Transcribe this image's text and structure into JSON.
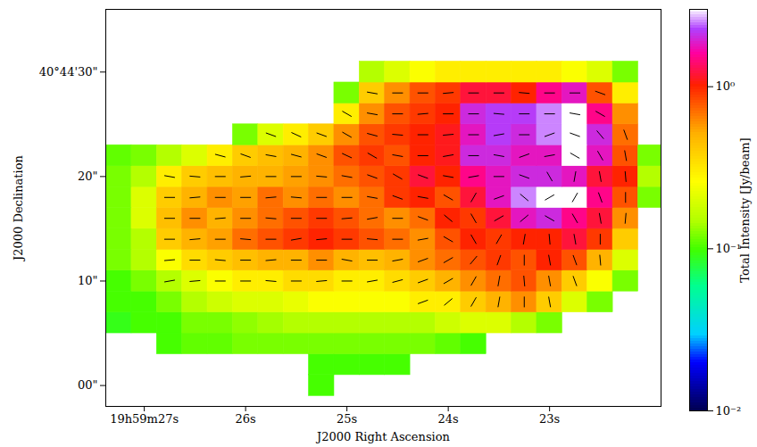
{
  "chart_data": {
    "type": "heatmap",
    "xlabel": "J2000 Right Ascension",
    "ylabel": "J2000 Declination",
    "xlim": [
      27.38,
      21.9
    ],
    "xticks": [
      {
        "value": 27,
        "label": "19h59m27s"
      },
      {
        "value": 26,
        "label": "26s"
      },
      {
        "value": 25,
        "label": "25s"
      },
      {
        "value": 24,
        "label": "24s"
      },
      {
        "value": 23,
        "label": "23s"
      }
    ],
    "ylim": [
      -2,
      36
    ],
    "yticks": [
      {
        "value": 0,
        "label": "00\""
      },
      {
        "value": 10,
        "label": "10\""
      },
      {
        "value": 20,
        "label": "20\""
      },
      {
        "value": 30,
        "label": "40°44'30\""
      }
    ],
    "ra": [
      27.25,
      27.0,
      26.75,
      26.5,
      26.25,
      26.0,
      25.75,
      25.5,
      25.25,
      25.0,
      24.75,
      24.5,
      24.25,
      24.0,
      23.75,
      23.5,
      23.25,
      23.0,
      22.75,
      22.5,
      22.25,
      22.0
    ],
    "dec": [
      0,
      2,
      4,
      6,
      8,
      10,
      12,
      14,
      16,
      18,
      20,
      22,
      24,
      26,
      28,
      30,
      32,
      34
    ],
    "intensity": [
      [
        null,
        null,
        null,
        null,
        null,
        null,
        null,
        null,
        0.1,
        null,
        null,
        null,
        null,
        null,
        null,
        null,
        null,
        null,
        null,
        null,
        null,
        null
      ],
      [
        null,
        null,
        null,
        null,
        null,
        null,
        null,
        null,
        0.1,
        0.1,
        0.1,
        0.1,
        null,
        null,
        null,
        null,
        null,
        null,
        null,
        null,
        null,
        null
      ],
      [
        null,
        null,
        0.1,
        0.11,
        0.11,
        0.12,
        0.12,
        0.12,
        0.12,
        0.12,
        0.12,
        0.12,
        0.12,
        0.11,
        0.1,
        null,
        null,
        null,
        null,
        null,
        null,
        null
      ],
      [
        0.09,
        0.1,
        0.1,
        0.12,
        0.12,
        0.13,
        0.14,
        0.15,
        0.15,
        0.15,
        0.15,
        0.15,
        0.15,
        0.18,
        0.2,
        0.2,
        0.15,
        0.12,
        null,
        null,
        null,
        null
      ],
      [
        0.1,
        0.1,
        0.12,
        0.15,
        0.18,
        0.2,
        0.2,
        0.22,
        0.25,
        0.25,
        0.25,
        0.25,
        0.3,
        0.3,
        0.4,
        0.5,
        0.6,
        0.4,
        0.2,
        0.12,
        null,
        null
      ],
      [
        0.1,
        0.12,
        0.15,
        0.2,
        0.25,
        0.3,
        0.3,
        0.35,
        0.35,
        0.3,
        0.3,
        0.35,
        0.4,
        0.5,
        0.6,
        0.7,
        0.8,
        0.6,
        0.4,
        0.25,
        0.12,
        null
      ],
      [
        0.12,
        0.15,
        0.25,
        0.35,
        0.4,
        0.45,
        0.5,
        0.5,
        0.6,
        0.5,
        0.45,
        0.5,
        0.6,
        0.7,
        0.8,
        0.9,
        0.8,
        1.0,
        0.8,
        0.5,
        0.2,
        null
      ],
      [
        0.12,
        0.15,
        0.4,
        0.5,
        0.55,
        0.7,
        0.8,
        0.9,
        1.0,
        0.9,
        0.8,
        0.7,
        0.6,
        0.8,
        1.0,
        0.9,
        1.0,
        1.0,
        1.2,
        0.9,
        0.4,
        null
      ],
      [
        0.12,
        0.2,
        0.45,
        0.6,
        0.5,
        0.6,
        0.7,
        0.8,
        0.9,
        0.8,
        0.7,
        0.6,
        0.7,
        1.0,
        0.9,
        1.2,
        1.8,
        2.0,
        1.5,
        1.2,
        0.6,
        null
      ],
      [
        0.12,
        0.2,
        0.4,
        0.5,
        0.6,
        0.55,
        0.7,
        0.6,
        0.7,
        0.6,
        0.7,
        0.9,
        1.0,
        0.8,
        1.2,
        1.8,
        2.5,
        4.0,
        3.0,
        1.5,
        0.8,
        0.12
      ],
      [
        0.12,
        0.15,
        0.3,
        0.4,
        0.45,
        0.5,
        0.5,
        0.55,
        0.6,
        0.7,
        0.8,
        0.9,
        1.2,
        1.0,
        1.5,
        1.8,
        2.0,
        2.0,
        1.8,
        1.2,
        1.0,
        0.15
      ],
      [
        0.11,
        0.12,
        0.15,
        0.2,
        0.3,
        0.4,
        0.45,
        0.5,
        0.6,
        0.8,
        0.9,
        0.8,
        1.0,
        1.1,
        2.0,
        2.0,
        1.8,
        1.8,
        3.0,
        1.8,
        0.8,
        0.12
      ],
      [
        null,
        null,
        null,
        null,
        null,
        0.12,
        0.2,
        0.3,
        0.4,
        0.6,
        0.8,
        0.9,
        1.0,
        1.1,
        1.8,
        2.2,
        2.0,
        2.5,
        4.0,
        2.0,
        0.7,
        null
      ],
      [
        null,
        null,
        null,
        null,
        null,
        null,
        null,
        null,
        null,
        0.3,
        0.6,
        0.8,
        0.9,
        1.0,
        2.0,
        2.2,
        2.2,
        2.5,
        3.5,
        1.5,
        0.6,
        null
      ],
      [
        null,
        null,
        null,
        null,
        null,
        null,
        null,
        null,
        null,
        0.12,
        0.4,
        0.6,
        0.8,
        0.9,
        1.2,
        1.2,
        1.0,
        1.5,
        1.8,
        0.8,
        0.3,
        null
      ],
      [
        null,
        null,
        null,
        null,
        null,
        null,
        null,
        null,
        null,
        null,
        0.15,
        0.2,
        0.25,
        0.3,
        0.3,
        0.3,
        0.3,
        0.3,
        0.25,
        0.2,
        0.12,
        null
      ],
      [
        null,
        null,
        null,
        null,
        null,
        null,
        null,
        null,
        null,
        null,
        null,
        null,
        null,
        null,
        null,
        null,
        null,
        null,
        null,
        null,
        null,
        null
      ],
      [
        null,
        null,
        null,
        null,
        null,
        null,
        null,
        null,
        null,
        null,
        null,
        null,
        null,
        null,
        null,
        null,
        null,
        null,
        null,
        null,
        null,
        null
      ]
    ],
    "vector_angle": [
      [
        null,
        null,
        null,
        null,
        null,
        null,
        null,
        null,
        null,
        null,
        null,
        null,
        null,
        null,
        null,
        null,
        null,
        null,
        null,
        null,
        null,
        null
      ],
      [
        null,
        null,
        null,
        null,
        null,
        null,
        null,
        null,
        null,
        null,
        null,
        null,
        null,
        null,
        null,
        null,
        null,
        null,
        null,
        null,
        null,
        null
      ],
      [
        null,
        null,
        null,
        null,
        null,
        null,
        null,
        null,
        null,
        null,
        null,
        null,
        null,
        null,
        null,
        null,
        null,
        null,
        null,
        null,
        null,
        null
      ],
      [
        null,
        null,
        null,
        null,
        null,
        null,
        null,
        null,
        null,
        null,
        null,
        null,
        null,
        null,
        null,
        null,
        null,
        null,
        null,
        null,
        null,
        null
      ],
      [
        null,
        null,
        null,
        null,
        null,
        null,
        null,
        null,
        null,
        null,
        null,
        null,
        20,
        40,
        60,
        80,
        90,
        100,
        null,
        null,
        null,
        null
      ],
      [
        null,
        null,
        10,
        5,
        0,
        0,
        -5,
        0,
        5,
        0,
        10,
        15,
        20,
        30,
        60,
        80,
        95,
        100,
        110,
        null,
        null,
        null
      ],
      [
        null,
        null,
        5,
        0,
        -5,
        0,
        5,
        0,
        0,
        -10,
        0,
        10,
        20,
        30,
        50,
        70,
        90,
        100,
        110,
        95,
        null,
        null
      ],
      [
        null,
        null,
        0,
        5,
        0,
        -5,
        0,
        10,
        5,
        0,
        -5,
        0,
        10,
        150,
        120,
        60,
        80,
        95,
        100,
        90,
        null,
        null
      ],
      [
        null,
        null,
        0,
        0,
        5,
        0,
        -5,
        0,
        0,
        5,
        10,
        0,
        160,
        140,
        120,
        30,
        40,
        150,
        120,
        100,
        85,
        null
      ],
      [
        null,
        null,
        0,
        5,
        0,
        0,
        5,
        -5,
        0,
        0,
        -10,
        -20,
        170,
        150,
        60,
        20,
        140,
        30,
        60,
        110,
        90,
        null
      ],
      [
        null,
        null,
        -10,
        -5,
        0,
        5,
        0,
        0,
        -5,
        -10,
        -20,
        -30,
        -20,
        170,
        10,
        0,
        160,
        120,
        80,
        100,
        95,
        null
      ],
      [
        null,
        null,
        null,
        null,
        -15,
        -20,
        -10,
        -15,
        -20,
        -25,
        -30,
        -10,
        0,
        10,
        0,
        170,
        20,
        10,
        150,
        120,
        100,
        null
      ],
      [
        null,
        null,
        null,
        null,
        null,
        null,
        -20,
        -25,
        -20,
        -30,
        -15,
        -5,
        0,
        5,
        0,
        10,
        0,
        20,
        160,
        130,
        110,
        null
      ],
      [
        null,
        null,
        null,
        null,
        null,
        null,
        null,
        null,
        null,
        -30,
        -10,
        0,
        5,
        0,
        0,
        -5,
        0,
        0,
        170,
        150,
        null,
        null
      ],
      [
        null,
        null,
        null,
        null,
        null,
        null,
        null,
        null,
        null,
        null,
        -10,
        0,
        0,
        5,
        0,
        0,
        -5,
        0,
        0,
        160,
        null,
        null
      ],
      [
        null,
        null,
        null,
        null,
        null,
        null,
        null,
        null,
        null,
        null,
        null,
        null,
        null,
        null,
        null,
        null,
        null,
        null,
        null,
        null,
        null,
        null
      ],
      [
        null,
        null,
        null,
        null,
        null,
        null,
        null,
        null,
        null,
        null,
        null,
        null,
        null,
        null,
        null,
        null,
        null,
        null,
        null,
        null,
        null,
        null
      ],
      [
        null,
        null,
        null,
        null,
        null,
        null,
        null,
        null,
        null,
        null,
        null,
        null,
        null,
        null,
        null,
        null,
        null,
        null,
        null,
        null,
        null,
        null
      ]
    ],
    "colorbar": {
      "label": "Total Intensity [Jy/beam]",
      "log": true,
      "range": [
        0.01,
        3
      ],
      "ticks": [
        {
          "value": 0.01,
          "label": "10⁻²"
        },
        {
          "value": 0.1,
          "label": "10⁻¹"
        },
        {
          "value": 1,
          "label": "10⁰"
        }
      ]
    }
  }
}
